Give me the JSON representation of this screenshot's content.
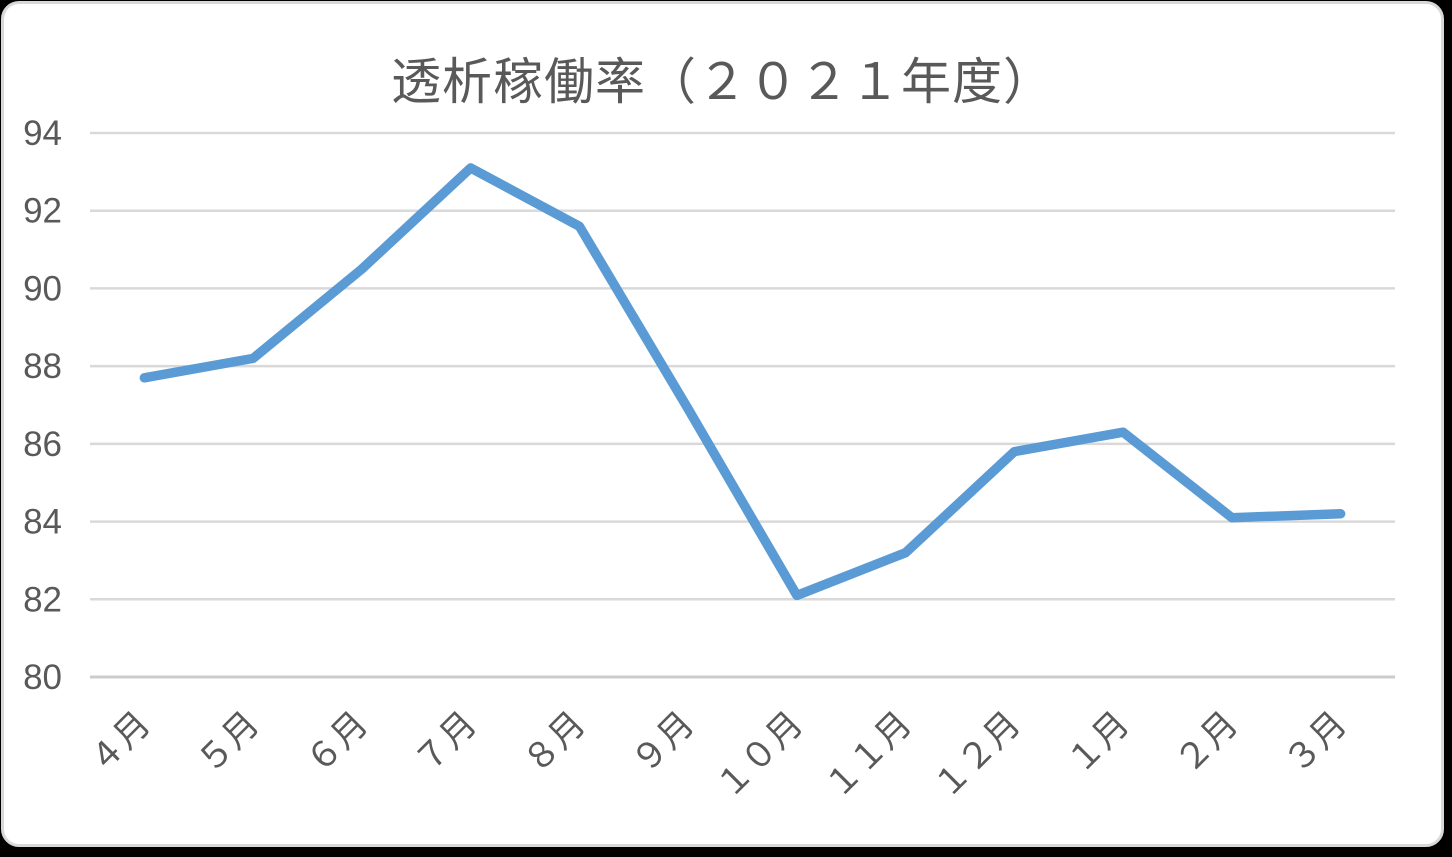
{
  "window": {
    "background_color": "#000000",
    "card_background_color": "#ffffff",
    "card_border_color": "#d8d8d8"
  },
  "chart_data": {
    "type": "line",
    "title": "透析稼働率（２０２１年度）",
    "categories": [
      "４月",
      "５月",
      "６月",
      "７月",
      "８月",
      "９月",
      "１０月",
      "１１月",
      "１２月",
      "１月",
      "２月",
      "３月"
    ],
    "values": [
      87.7,
      88.2,
      90.5,
      93.1,
      91.6,
      86.9,
      82.1,
      83.2,
      85.8,
      86.3,
      84.1,
      84.2
    ],
    "xlabel": "",
    "ylabel": "",
    "ylim": [
      80,
      94
    ],
    "ytick_step": 2,
    "ytick_labels": [
      "80",
      "82",
      "84",
      "86",
      "88",
      "90",
      "92",
      "94"
    ],
    "x_label_rotation_deg": -45,
    "grid": true,
    "legend": false,
    "line_color": "#5B9BD5",
    "line_width": 9.5,
    "gridline_color": "#D9D9D9",
    "axis_line_color": "#CCCCCC",
    "text_color": "#595959",
    "axis_font_size": 35,
    "title_font_size": 50
  }
}
